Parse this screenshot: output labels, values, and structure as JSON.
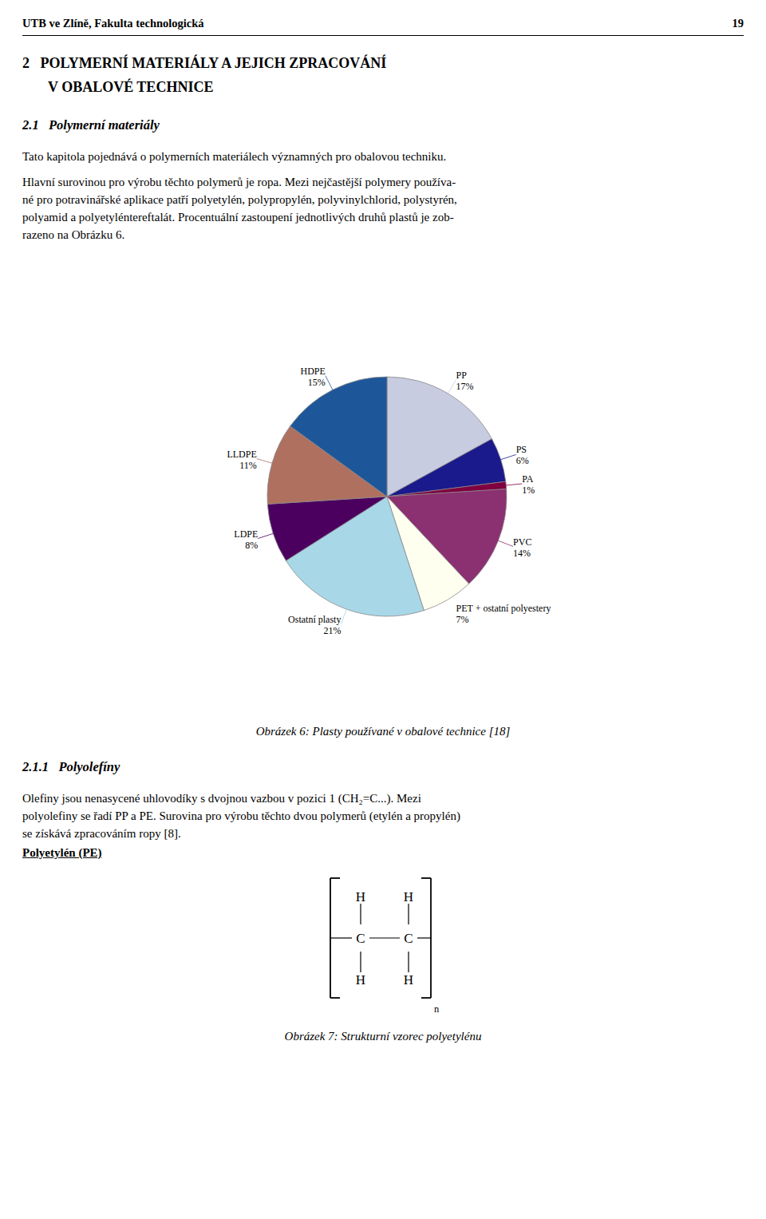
{
  "chart_data": {
    "type": "pie",
    "title": "Obrázek 6: Plasty používané v obalové technice [18]",
    "categories": [
      "PP",
      "PS",
      "PA",
      "PVC",
      "PET + ostatní polyestery",
      "Ostatní plasty",
      "LDPE",
      "LLDPE",
      "HDPE"
    ],
    "values": [
      17,
      6,
      1,
      14,
      7,
      21,
      8,
      11,
      15
    ],
    "value_labels": [
      "17%",
      "6%",
      "1%",
      "14%",
      "7%",
      "21%",
      "8%",
      "11%",
      "15%"
    ],
    "colors": [
      "#c8cce0",
      "#1a1a8c",
      "#800040",
      "#8b3070",
      "#fffff0",
      "#a8d8e8",
      "#4b0060",
      "#b07060",
      "#1e5799"
    ],
    "data_labels": true,
    "annotations": [
      "UTB ve Zlíně, Fakulta technologická",
      "19",
      "2   POLYMERNÍ MATERIÁLY A JEJICH ZPRACOVÁNÍ",
      "V OBALOVÉ TECHNICE",
      "2.1   Polymerní materiály",
      "Tato kapitola pojednává o polymerních materiálech významných pro obalovou techniku.",
      "Hlavní surovinou pro výrobu těchto polymerů je ropa. Mezi nejčastější polymery používa-",
      "né pro potravinářské aplikace patří polyetylén, polypropylén, polyvinylchlorid, polystyrén,",
      "polyamid a polyetyléntereftalát. Procentuální zastoupení jednotlivých druhů plastů je zob-",
      "razeno na Obrázku 6.",
      "2.1.1   Polyolefíny",
      "Olefiny jsou nenasycené uhlovodíky s dvojnou vazbou v pozici 1 (CH₂=C...). Mezi",
      "polyolefiny se řadí PP a PE. Surovina pro výrobu těchto dvou polymerů (etylén a propylén)",
      "se získává zpracováním ropy [8].",
      "Polyetylén (PE)",
      "H",
      "H",
      "C",
      "C",
      "H",
      "H",
      "n",
      "Obrázek 7: Strukturní vzorec polyetylénu"
    ]
  }
}
